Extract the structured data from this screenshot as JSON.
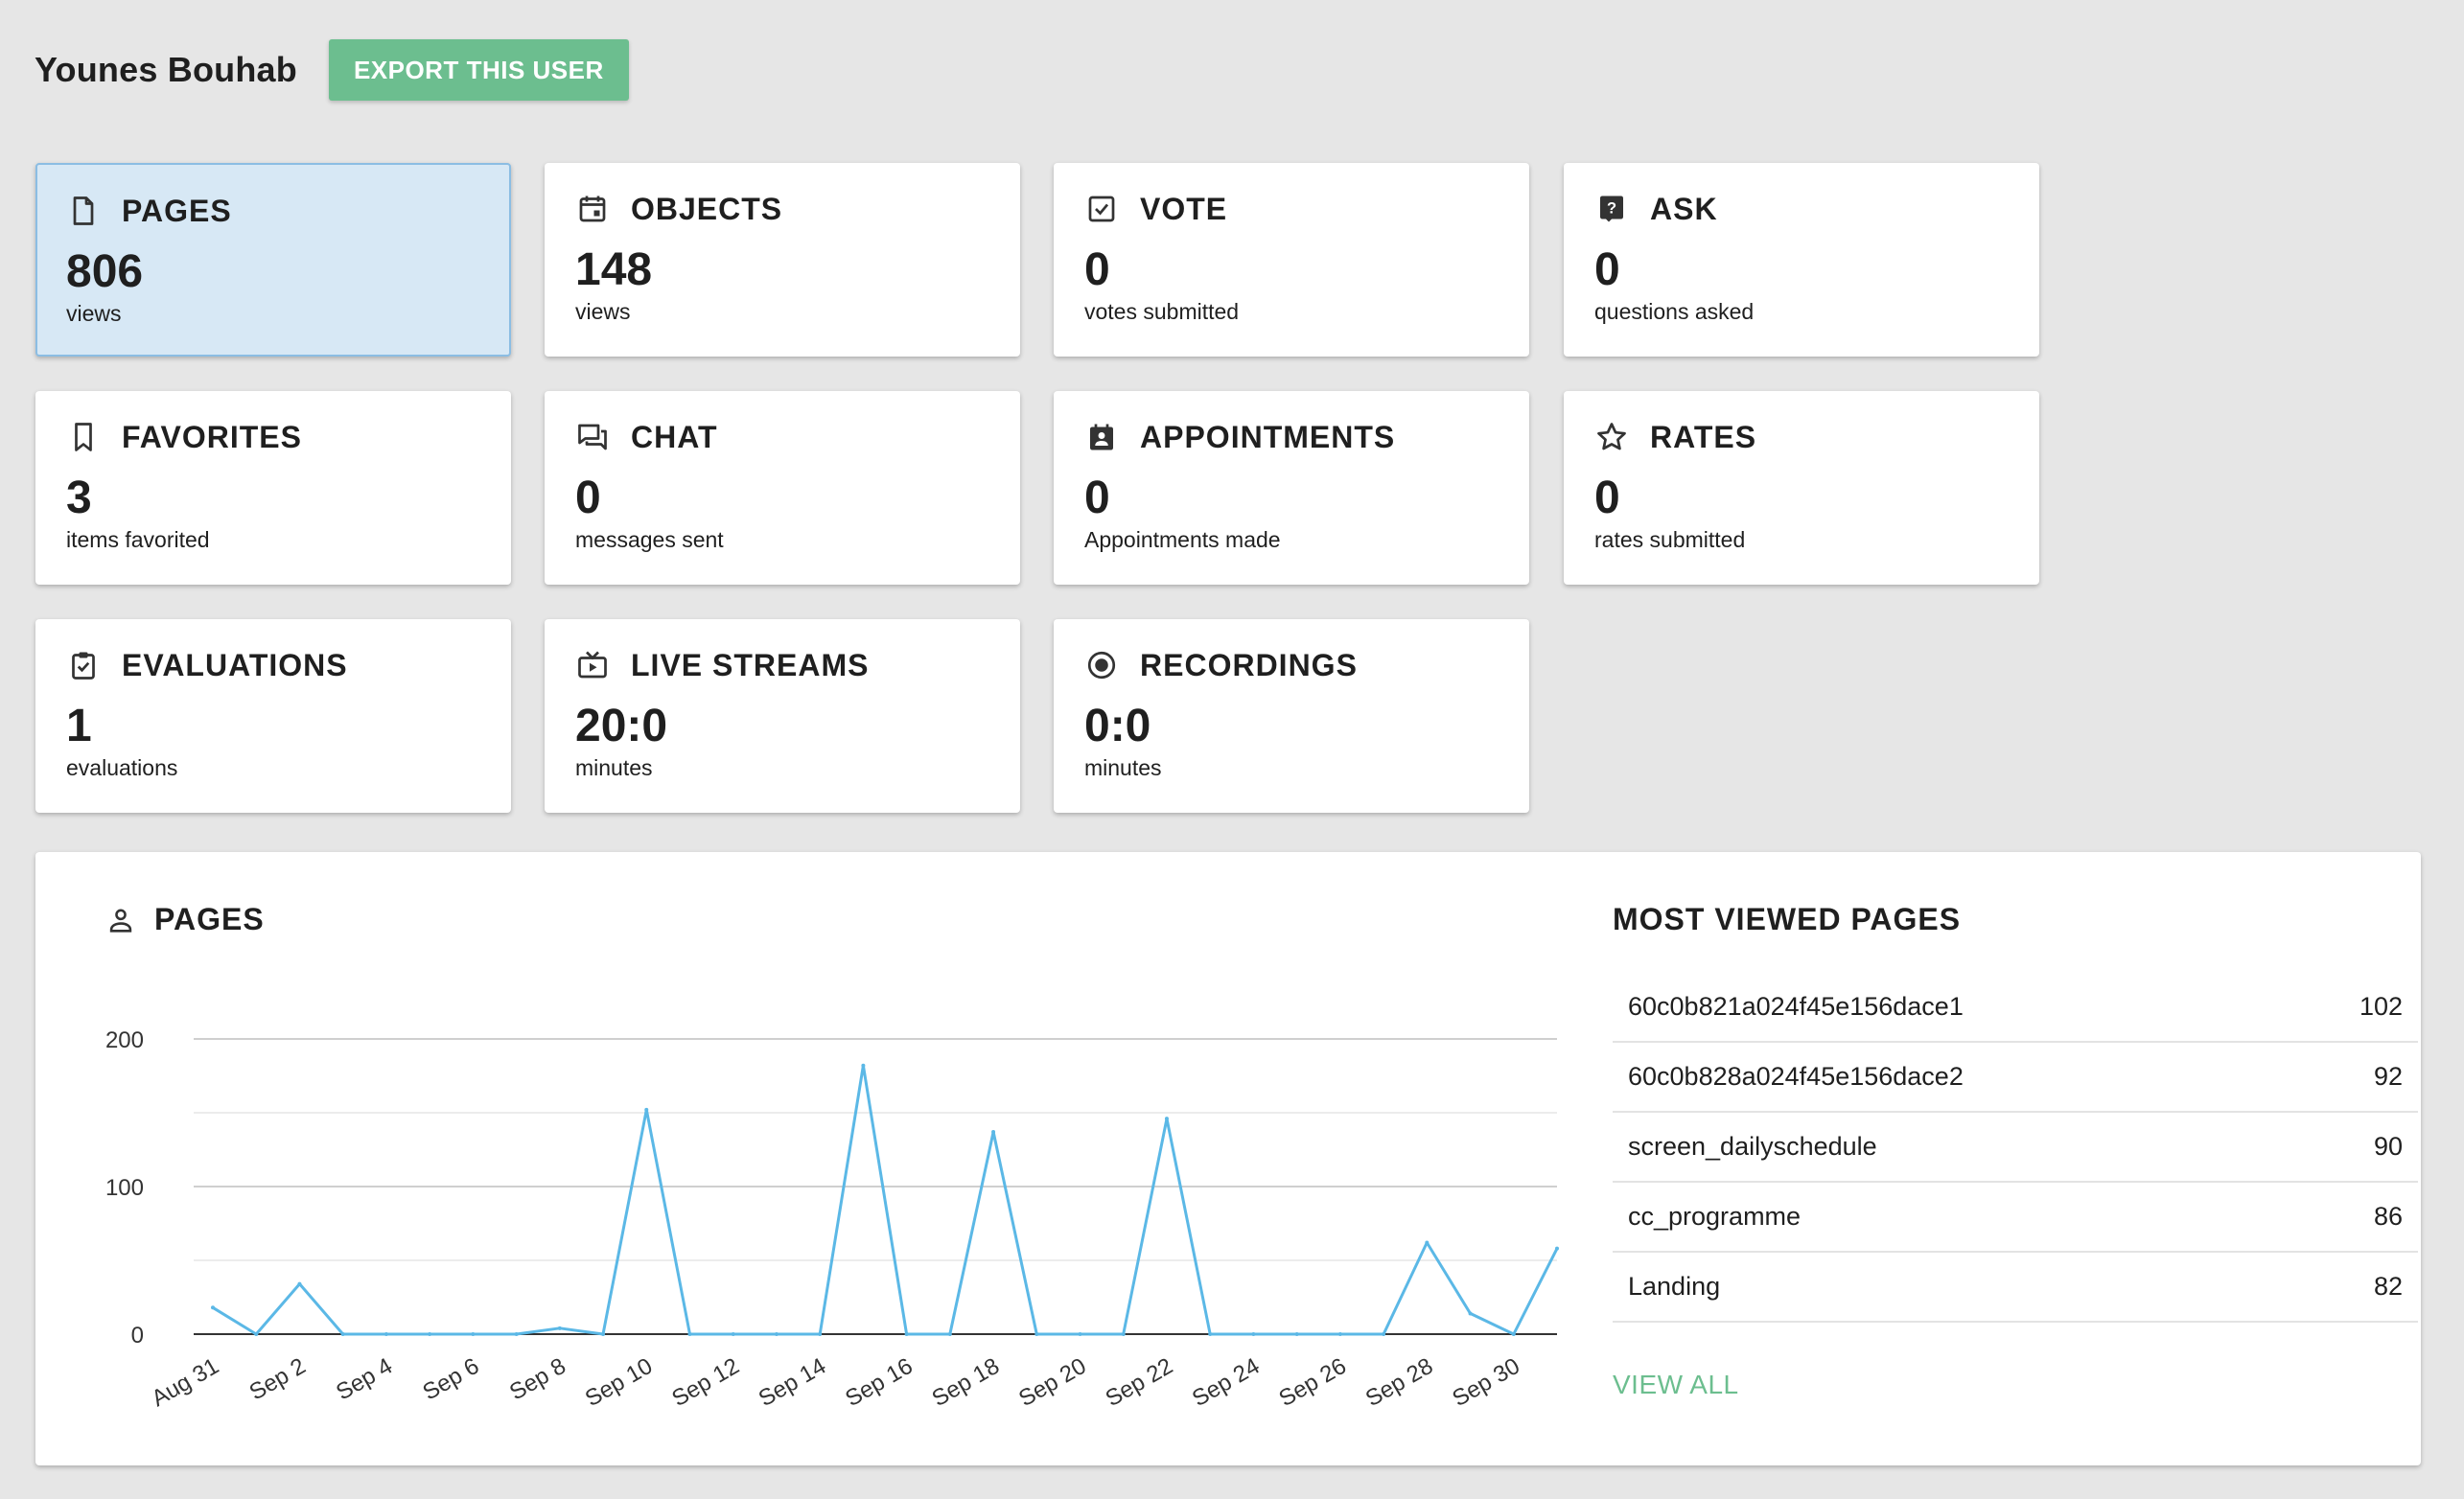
{
  "header": {
    "user_name": "Younes Bouhab",
    "export_label": "EXPORT THIS USER"
  },
  "cards": [
    {
      "icon": "page-icon",
      "title": "PAGES",
      "value": "806",
      "sub": "views",
      "active": true
    },
    {
      "icon": "calendar-icon",
      "title": "OBJECTS",
      "value": "148",
      "sub": "views"
    },
    {
      "icon": "checkbox-icon",
      "title": "VOTE",
      "value": "0",
      "sub": "votes submitted"
    },
    {
      "icon": "question-icon",
      "title": "ASK",
      "value": "0",
      "sub": "questions asked"
    },
    {
      "icon": "bookmark-icon",
      "title": "FAVORITES",
      "value": "3",
      "sub": "items favorited"
    },
    {
      "icon": "chat-icon",
      "title": "CHAT",
      "value": "0",
      "sub": "messages sent"
    },
    {
      "icon": "contact-calendar-icon",
      "title": "APPOINTMENTS",
      "value": "0",
      "sub": "Appointments made"
    },
    {
      "icon": "star-icon",
      "title": "RATES",
      "value": "0",
      "sub": "rates submitted"
    },
    {
      "icon": "clipboard-check-icon",
      "title": "EVALUATIONS",
      "value": "1",
      "sub": "evaluations"
    },
    {
      "icon": "tv-icon",
      "title": "LIVE STREAMS",
      "value": "20:0",
      "sub": "minutes"
    },
    {
      "icon": "record-icon",
      "title": "RECORDINGS",
      "value": "0:0",
      "sub": "minutes"
    }
  ],
  "panel": {
    "title": "PAGES",
    "icon": "person-icon",
    "most_viewed_title": "MOST VIEWED PAGES",
    "view_all": "VIEW ALL",
    "most_viewed": [
      {
        "name": "60c0b821a024f45e156dace1",
        "count": "102"
      },
      {
        "name": "60c0b828a024f45e156dace2",
        "count": "92"
      },
      {
        "name": "screen_dailyschedule",
        "count": "90"
      },
      {
        "name": "cc_programme",
        "count": "86"
      },
      {
        "name": "Landing",
        "count": "82"
      }
    ]
  },
  "colors": {
    "accent": "#6cbe8f",
    "line": "#5bb8e6",
    "active_card": "#d7e8f5"
  },
  "chart_data": {
    "type": "line",
    "title": "",
    "xlabel": "",
    "ylabel": "",
    "ylim": [
      0,
      200
    ],
    "yticks": [
      "0",
      "100",
      "200"
    ],
    "x": [
      "Aug 31",
      "Sep 1",
      "Sep 2",
      "Sep 3",
      "Sep 4",
      "Sep 5",
      "Sep 6",
      "Sep 7",
      "Sep 8",
      "Sep 9",
      "Sep 10",
      "Sep 11",
      "Sep 12",
      "Sep 13",
      "Sep 14",
      "Sep 15",
      "Sep 16",
      "Sep 17",
      "Sep 18",
      "Sep 19",
      "Sep 20",
      "Sep 21",
      "Sep 22",
      "Sep 23",
      "Sep 24",
      "Sep 25",
      "Sep 26",
      "Sep 27",
      "Sep 28",
      "Sep 29",
      "Sep 30",
      "Oct 1"
    ],
    "xtick_labels": [
      "Aug 31",
      "Sep 2",
      "Sep 4",
      "Sep 6",
      "Sep 8",
      "Sep 10",
      "Sep 12",
      "Sep 14",
      "Sep 16",
      "Sep 18",
      "Sep 20",
      "Sep 22",
      "Sep 24",
      "Sep 26",
      "Sep 28",
      "Sep 30"
    ],
    "series": [
      {
        "values": [
          18,
          0,
          34,
          0,
          0,
          0,
          0,
          0,
          4,
          0,
          152,
          0,
          0,
          0,
          0,
          182,
          0,
          0,
          137,
          0,
          0,
          0,
          146,
          0,
          0,
          0,
          0,
          0,
          62,
          14,
          0,
          58
        ]
      }
    ]
  }
}
